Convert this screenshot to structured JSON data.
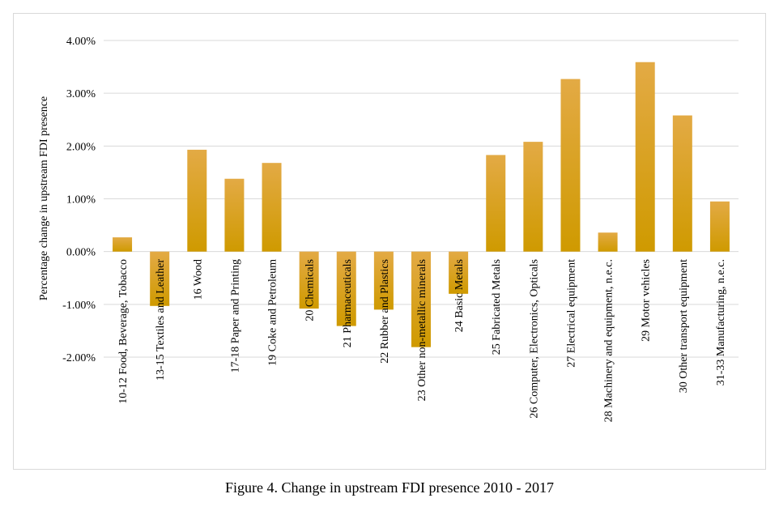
{
  "caption": "Figure 4. Change in upstream FDI presence 2010 - 2017",
  "chart_data": {
    "type": "bar",
    "title": "",
    "xlabel": "",
    "ylabel": "Percentage change in upstream FDI presence",
    "ylim": [
      -0.02,
      0.04
    ],
    "yticks": [
      {
        "value": 0.04,
        "label": "4.00%"
      },
      {
        "value": 0.03,
        "label": "3.00%"
      },
      {
        "value": 0.02,
        "label": "2.00%"
      },
      {
        "value": 0.01,
        "label": "1.00%"
      },
      {
        "value": 0.0,
        "label": "0.00%"
      },
      {
        "value": -0.01,
        "label": "-1.00%"
      },
      {
        "value": -0.02,
        "label": "-2.00%"
      }
    ],
    "grid": true,
    "bar_color_top": "#e3aa45",
    "bar_color_bottom": "#cf9a00",
    "categories": [
      "10-12 Food, Beverage, Tobacco",
      "13-15 Textiles and Leather",
      "16 Wood",
      "17-18 Paper and Printing",
      "19 Coke and Petroleum",
      "20 Chemicals",
      "21 Pharmaceuticals",
      "22 Rubber and Plastics",
      "23 Other non-metallic minerals",
      "24 Basic Metals",
      "25 Fabricated Metals",
      "26 Computer, Electronics, Opticals",
      "27 Electrical equipment",
      "28 Machinery and equipment, n.e.c.",
      "29 Motor vehicles",
      "30 Other transport equipment",
      "31-33 Manufacturing, n.e.c."
    ],
    "values": [
      0.0027,
      -0.0103,
      0.0193,
      0.0138,
      0.0168,
      -0.0108,
      -0.0141,
      -0.011,
      -0.0181,
      -0.008,
      0.0183,
      0.0208,
      0.0327,
      0.0036,
      0.0359,
      0.0258,
      0.0095
    ]
  }
}
